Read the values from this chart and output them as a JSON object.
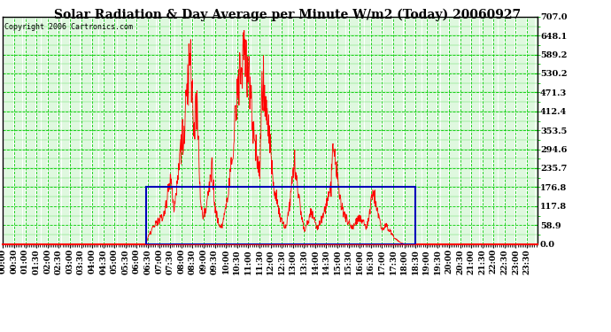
{
  "title": "Solar Radiation & Day Average per Minute W/m2 (Today) 20060927",
  "copyright": "Copyright 2006 Cartronics.com",
  "ymax": 707.0,
  "yticks": [
    707.0,
    648.1,
    589.2,
    530.2,
    471.3,
    412.4,
    353.5,
    294.6,
    235.7,
    176.8,
    117.8,
    58.9,
    0.0
  ],
  "bg_color": "#ffffff",
  "plot_bg_color": "#ffffff",
  "grid_color": "#00cc00",
  "line_color": "#ff0000",
  "avg_color": "#0000bb",
  "title_color": "#000000",
  "copyright_color": "#000000",
  "avg_value": 176.8,
  "sunrise_min": 385,
  "sunset_min": 1110,
  "total_minutes": 1440,
  "x_tick_step": 30,
  "title_fontsize": 10,
  "copyright_fontsize": 6,
  "tick_fontsize": 6.5,
  "ytick_fontsize": 7
}
